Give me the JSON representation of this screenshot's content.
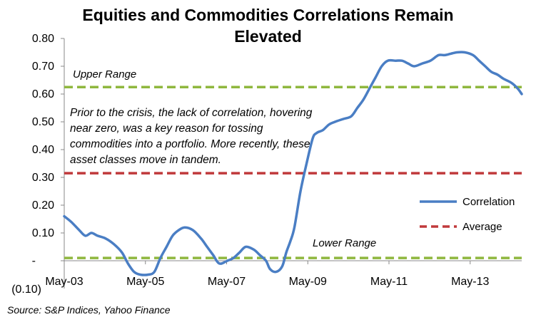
{
  "chart_data": {
    "type": "line",
    "title": "Equities and Commodities Correlations Remain Elevated",
    "title_lines": [
      "Equities and Commodities Correlations Remain",
      "Elevated"
    ],
    "ylim": [
      -0.1,
      0.8
    ],
    "yticks": [
      {
        "value": 0.8,
        "label": "0.80"
      },
      {
        "value": 0.7,
        "label": "0.70"
      },
      {
        "value": 0.6,
        "label": "0.60"
      },
      {
        "value": 0.5,
        "label": "0.50"
      },
      {
        "value": 0.4,
        "label": "0.40"
      },
      {
        "value": 0.3,
        "label": "0.30"
      },
      {
        "value": 0.2,
        "label": "0.20"
      },
      {
        "value": 0.1,
        "label": "0.10"
      },
      {
        "value": 0.0,
        "label": "-"
      },
      {
        "value": -0.1,
        "label": "(0.10)"
      }
    ],
    "xlim": [
      2003.33,
      2014.6
    ],
    "xticks": [
      {
        "value": 2003.33,
        "label": "May-03"
      },
      {
        "value": 2005.33,
        "label": "May-05"
      },
      {
        "value": 2007.33,
        "label": "May-07"
      },
      {
        "value": 2009.33,
        "label": "May-09"
      },
      {
        "value": 2011.33,
        "label": "May-11"
      },
      {
        "value": 2013.33,
        "label": "May-13"
      }
    ],
    "series": [
      {
        "name": "Correlation",
        "color": "#4a7ec4",
        "x": [
          2003.33,
          2003.5,
          2003.7,
          2003.85,
          2004.0,
          2004.15,
          2004.35,
          2004.55,
          2004.75,
          2004.9,
          2005.05,
          2005.2,
          2005.4,
          2005.55,
          2005.7,
          2005.85,
          2006.0,
          2006.15,
          2006.3,
          2006.5,
          2006.7,
          2006.85,
          2007.0,
          2007.15,
          2007.35,
          2007.5,
          2007.65,
          2007.8,
          2008.0,
          2008.15,
          2008.3,
          2008.4,
          2008.55,
          2008.7,
          2008.8,
          2008.9,
          2009.0,
          2009.15,
          2009.3,
          2009.45,
          2009.55,
          2009.7,
          2009.85,
          2010.0,
          2010.2,
          2010.4,
          2010.55,
          2010.7,
          2010.85,
          2011.0,
          2011.15,
          2011.3,
          2011.5,
          2011.65,
          2011.8,
          2011.95,
          2012.15,
          2012.35,
          2012.55,
          2012.7,
          2012.85,
          2013.0,
          2013.2,
          2013.4,
          2013.55,
          2013.7,
          2013.85,
          2014.0,
          2014.15,
          2014.35,
          2014.5,
          2014.6
        ],
        "y": [
          0.16,
          0.14,
          0.11,
          0.09,
          0.1,
          0.09,
          0.08,
          0.06,
          0.03,
          -0.01,
          -0.04,
          -0.05,
          -0.05,
          -0.04,
          0.01,
          0.05,
          0.09,
          0.11,
          0.12,
          0.11,
          0.08,
          0.05,
          0.02,
          -0.01,
          0.0,
          0.01,
          0.03,
          0.05,
          0.04,
          0.02,
          0.0,
          -0.03,
          -0.04,
          -0.02,
          0.03,
          0.07,
          0.12,
          0.25,
          0.35,
          0.44,
          0.46,
          0.47,
          0.49,
          0.5,
          0.51,
          0.52,
          0.55,
          0.58,
          0.62,
          0.66,
          0.7,
          0.72,
          0.72,
          0.72,
          0.71,
          0.7,
          0.71,
          0.72,
          0.74,
          0.74,
          0.745,
          0.75,
          0.75,
          0.74,
          0.72,
          0.7,
          0.68,
          0.67,
          0.655,
          0.64,
          0.62,
          0.6
        ]
      }
    ],
    "reference_lines": [
      {
        "name": "Upper Range",
        "value": 0.625,
        "color": "#8fb73e",
        "label": "Upper Range"
      },
      {
        "name": "Average",
        "value": 0.315,
        "color": "#c0393b",
        "label": ""
      },
      {
        "name": "Lower Range",
        "value": 0.01,
        "color": "#8fb73e",
        "label": "Lower Range"
      }
    ],
    "legend": [
      {
        "label": "Correlation",
        "color": "#4a7ec4",
        "style": "solid"
      },
      {
        "label": "Average",
        "color": "#c0393b",
        "style": "dashed"
      }
    ],
    "legend_position": "right",
    "annotation": "Prior to the crisis, the lack of correlation, hovering near zero, was a key reason for tossing commodities into a portfolio. More recently, these asset classes move in tandem.",
    "source": "Source: S&P Indices, Yahoo Finance"
  }
}
